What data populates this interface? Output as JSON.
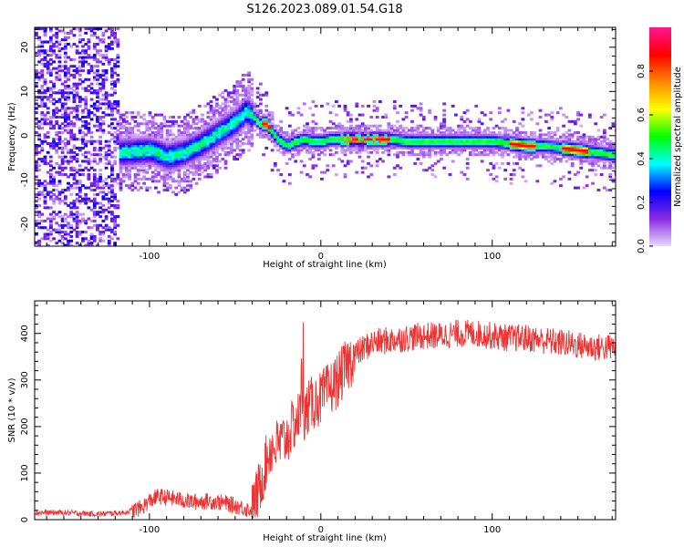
{
  "figure_title": "S126.2023.089.01.54.G18",
  "chart_data": [
    {
      "type": "heatmap",
      "xlabel": "Height of straight line (km)",
      "ylabel": "Frequency (Hz)",
      "xlim": [
        -167,
        172
      ],
      "ylim": [
        -25,
        24.5
      ],
      "xticks": [
        -100,
        0,
        100
      ],
      "yticks": [
        -20,
        -10,
        0,
        10,
        20
      ],
      "colorbar": {
        "label": "Normalized spectral amplitude",
        "range": [
          0,
          1
        ],
        "ticks": [
          "0.0",
          "0.2",
          "0.4",
          "0.6",
          "0.8"
        ],
        "colormap": [
          "#e8d8ff",
          "#8a2be2",
          "#0000ff",
          "#00ffff",
          "#00ff00",
          "#ffff00",
          "#ff8800",
          "#ff0000",
          "#ff1493"
        ]
      },
      "ridge": {
        "x": [
          -115,
          -100,
          -90,
          -80,
          -70,
          -60,
          -50,
          -44,
          -40,
          -36,
          -32,
          -28,
          -24,
          -20,
          -15,
          -10,
          -5,
          0,
          5,
          10,
          20,
          30,
          40,
          50,
          60,
          70,
          80,
          90,
          100,
          110,
          120,
          130,
          140,
          150,
          160,
          170
        ],
        "y": [
          -4,
          -3.5,
          -5,
          -4,
          -2,
          0.5,
          3,
          5.5,
          4,
          2.5,
          2.5,
          0,
          -1.5,
          -2.5,
          -1.5,
          -1,
          -1.5,
          -1.5,
          -1,
          -1,
          -1,
          -1,
          -1,
          -1.5,
          -1.5,
          -1.5,
          -1.5,
          -1.5,
          -1.5,
          -2,
          -2.5,
          -2.5,
          -3,
          -3.5,
          -4,
          -4.5
        ]
      }
    },
    {
      "type": "line",
      "xlabel": "Height of straight line (km)",
      "ylabel": "SNR (10 * v/v)",
      "xlim": [
        -167,
        172
      ],
      "ylim": [
        0,
        470
      ],
      "xticks": [
        -100,
        0,
        100
      ],
      "yticks": [
        0,
        100,
        200,
        300,
        400
      ],
      "line_color": "#ee3333",
      "series": [
        {
          "x": [
            -167,
            -150,
            -130,
            -115,
            -105,
            -100,
            -95,
            -85,
            -75,
            -65,
            -55,
            -45,
            -40,
            -35,
            -30,
            -25,
            -20,
            -15,
            -10,
            -5,
            0,
            5,
            10,
            15,
            20,
            30,
            40,
            50,
            60,
            70,
            80,
            90,
            100,
            110,
            120,
            130,
            140,
            150,
            160,
            172
          ],
          "y": [
            15,
            15,
            12,
            15,
            25,
            40,
            50,
            45,
            38,
            40,
            35,
            25,
            20,
            80,
            150,
            160,
            175,
            210,
            230,
            250,
            260,
            280,
            300,
            330,
            355,
            380,
            385,
            390,
            395,
            395,
            400,
            400,
            395,
            390,
            390,
            385,
            380,
            375,
            370,
            370
          ]
        }
      ]
    }
  ]
}
